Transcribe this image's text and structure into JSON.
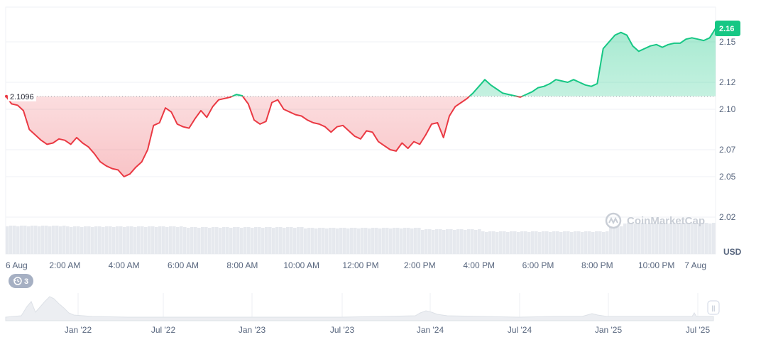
{
  "chart_data": {
    "type": "line",
    "unit": "USD",
    "reference_value": 2.1096,
    "reference_label": "2.1096",
    "last_value": 2.16,
    "last_label": "2.16",
    "ylim": [
      2.015,
      2.175
    ],
    "y_ticks": [
      2.02,
      2.05,
      2.07,
      2.1,
      2.12,
      2.15
    ],
    "y_tick_labels": [
      "2.02",
      "2.05",
      "2.07",
      "2.10",
      "2.12",
      "2.15"
    ],
    "x_tick_labels": [
      "6 Aug",
      "2:00 AM",
      "4:00 AM",
      "6:00 AM",
      "8:00 AM",
      "10:00 AM",
      "12:00 PM",
      "2:00 PM",
      "4:00 PM",
      "6:00 PM",
      "8:00 PM",
      "10:00 PM",
      "7 Aug"
    ],
    "x_tick_hours": [
      0,
      2,
      4,
      6,
      8,
      10,
      12,
      14,
      16,
      18,
      20,
      22,
      24
    ],
    "x_hours": [
      0,
      0.2,
      0.4,
      0.6,
      0.8,
      1.0,
      1.2,
      1.4,
      1.6,
      1.8,
      2.0,
      2.2,
      2.4,
      2.6,
      2.8,
      3.0,
      3.2,
      3.4,
      3.6,
      3.8,
      4.0,
      4.2,
      4.4,
      4.6,
      4.8,
      5.0,
      5.2,
      5.4,
      5.6,
      5.8,
      6.0,
      6.2,
      6.4,
      6.6,
      6.8,
      7.0,
      7.2,
      7.4,
      7.6,
      7.8,
      8.0,
      8.2,
      8.4,
      8.6,
      8.8,
      9.0,
      9.2,
      9.4,
      9.6,
      9.8,
      10.0,
      10.2,
      10.4,
      10.6,
      10.8,
      11.0,
      11.2,
      11.4,
      11.6,
      11.8,
      12.0,
      12.2,
      12.4,
      12.6,
      12.8,
      13.0,
      13.2,
      13.4,
      13.6,
      13.8,
      14.0,
      14.2,
      14.4,
      14.6,
      14.8,
      15.0,
      15.2,
      15.4,
      15.6,
      15.8,
      16.0,
      16.2,
      16.4,
      16.6,
      16.8,
      17.0,
      17.2,
      17.4,
      17.6,
      17.8,
      18.0,
      18.2,
      18.4,
      18.6,
      18.8,
      19.0,
      19.2,
      19.4,
      19.6,
      19.8,
      20.0,
      20.2,
      20.4,
      20.6,
      20.8,
      21.0,
      21.2,
      21.4,
      21.6,
      21.8,
      22.0,
      22.2,
      22.4,
      22.6,
      22.8,
      23.0,
      23.2,
      23.4,
      23.6,
      23.8,
      24.0
    ],
    "series": [
      {
        "values": [
          2.11,
          2.104,
          2.103,
          2.099,
          2.085,
          2.081,
          2.077,
          2.074,
          2.075,
          2.078,
          2.077,
          2.074,
          2.079,
          2.075,
          2.072,
          2.067,
          2.061,
          2.058,
          2.056,
          2.055,
          2.05,
          2.052,
          2.057,
          2.061,
          2.07,
          2.088,
          2.09,
          2.101,
          2.098,
          2.089,
          2.087,
          2.086,
          2.093,
          2.099,
          2.094,
          2.102,
          2.107,
          2.108,
          2.109,
          2.111,
          2.11,
          2.104,
          2.092,
          2.089,
          2.091,
          2.105,
          2.107,
          2.1,
          2.098,
          2.096,
          2.095,
          2.092,
          2.09,
          2.089,
          2.087,
          2.083,
          2.087,
          2.088,
          2.084,
          2.08,
          2.078,
          2.084,
          2.083,
          2.076,
          2.073,
          2.07,
          2.069,
          2.075,
          2.071,
          2.076,
          2.074,
          2.081,
          2.089,
          2.09,
          2.079,
          2.095,
          2.102,
          2.105,
          2.108,
          2.112,
          2.117,
          2.122,
          2.118,
          2.115,
          2.112,
          2.111,
          2.11,
          2.109,
          2.111,
          2.113,
          2.116,
          2.117,
          2.119,
          2.122,
          2.121,
          2.12,
          2.122,
          2.12,
          2.118,
          2.117,
          2.119,
          2.145,
          2.15,
          2.155,
          2.157,
          2.155,
          2.147,
          2.143,
          2.145,
          2.147,
          2.148,
          2.146,
          2.148,
          2.149,
          2.149,
          2.152,
          2.153,
          2.152,
          2.151,
          2.153,
          2.16
        ]
      }
    ]
  },
  "badges": {
    "history_count": "3"
  },
  "watermark": {
    "text": "CoinMarketCap"
  },
  "navigator": {
    "labels": [
      "Jan '22",
      "Jul '22",
      "Jan '23",
      "Jul '23",
      "Jan '24",
      "Jul '24",
      "Jan '25",
      "Jul '25"
    ],
    "handle_symbol": "||"
  },
  "colors": {
    "up": "#16c784",
    "down": "#ea3943",
    "up_fill": "#d6f5e7",
    "down_fill": "#fde2e3",
    "grid": "#eff2f5",
    "volume": "#e6e9ee"
  }
}
